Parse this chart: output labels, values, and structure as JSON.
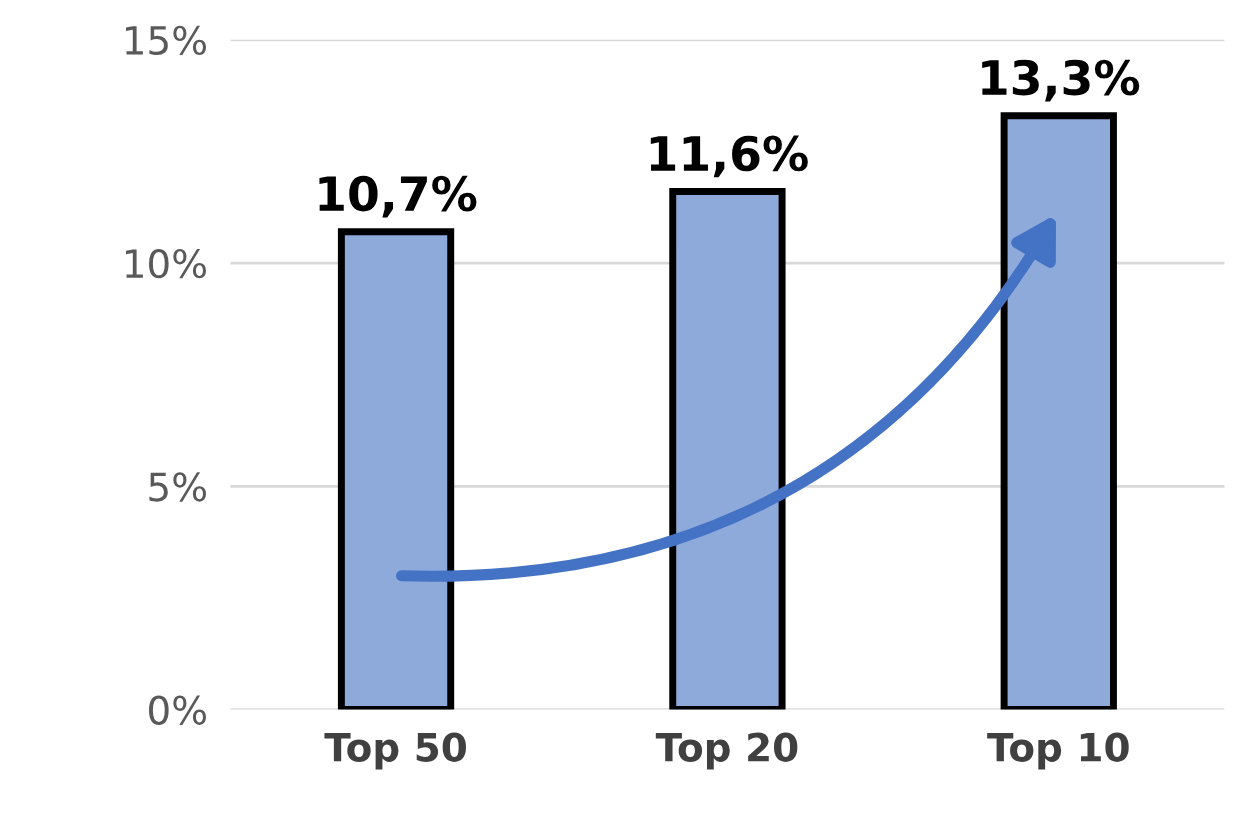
{
  "chart_data": {
    "type": "bar",
    "categories": [
      "Top 50",
      "Top 20",
      "Top 10"
    ],
    "values": [
      10.7,
      11.6,
      13.3
    ],
    "value_labels": [
      "10,7%",
      "11,6%",
      "13,3%"
    ],
    "color": "#8eaadb",
    "ylim": [
      0,
      15
    ],
    "yticks": [
      {
        "value": 0,
        "label": "0%"
      },
      {
        "value": 5,
        "label": "5%"
      },
      {
        "value": 10,
        "label": "10%"
      },
      {
        "value": 15,
        "label": "15%"
      }
    ],
    "grid": "y"
  }
}
